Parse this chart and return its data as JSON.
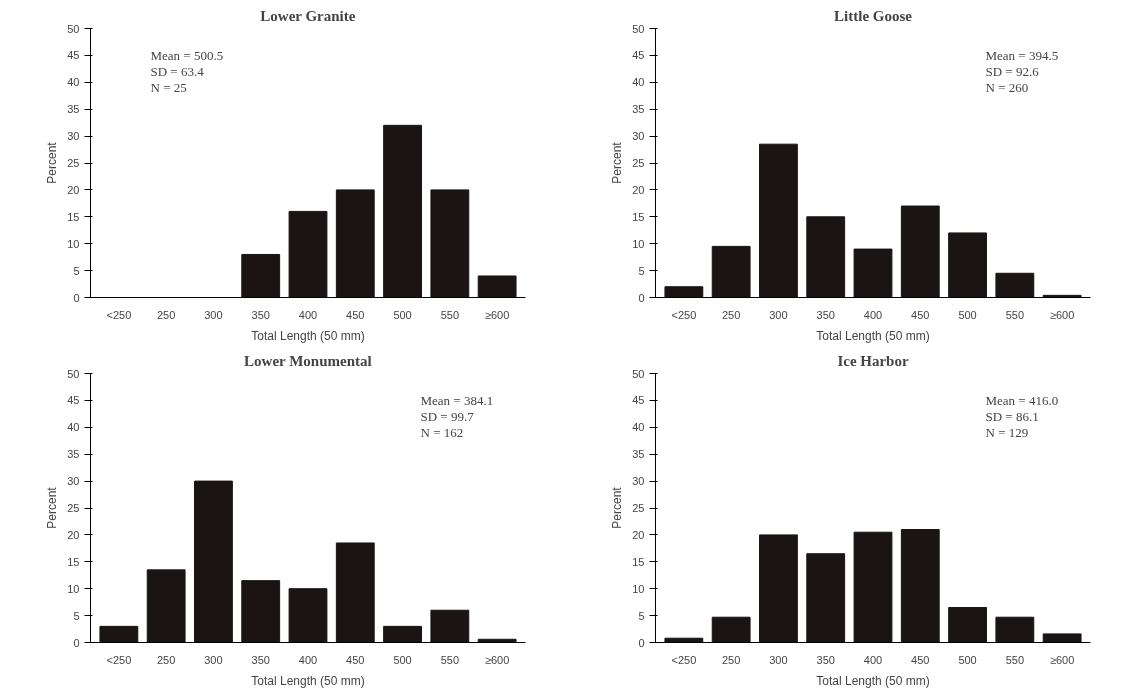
{
  "chart_data": [
    {
      "type": "bar",
      "title": "Lower Granite",
      "xlabel": "Total Length (50 mm)",
      "ylabel": "Percent",
      "categories": [
        "<250",
        "250",
        "300",
        "350",
        "400",
        "450",
        "500",
        "550",
        "≥600"
      ],
      "values": [
        0,
        0,
        0,
        8,
        16,
        20,
        32,
        20,
        4
      ],
      "color": "#1a1414",
      "ylim": [
        0,
        50
      ],
      "yticks": [
        0,
        5,
        10,
        15,
        20,
        25,
        30,
        35,
        40,
        45,
        50
      ],
      "grid": false,
      "annotations": [
        "Mean = 500.5",
        "SD = 63.4",
        "N = 25"
      ]
    },
    {
      "type": "bar",
      "title": "Little Goose",
      "xlabel": "Total Length (50 mm)",
      "ylabel": "Percent",
      "categories": [
        "<250",
        "250",
        "300",
        "350",
        "400",
        "450",
        "500",
        "550",
        "≥600"
      ],
      "values": [
        2,
        9.5,
        28.5,
        15,
        9,
        17,
        12,
        4.5,
        0.4
      ],
      "color": "#1a1414",
      "ylim": [
        0,
        50
      ],
      "yticks": [
        0,
        5,
        10,
        15,
        20,
        25,
        30,
        35,
        40,
        45,
        50
      ],
      "grid": false,
      "annotations": [
        "Mean = 394.5",
        "SD = 92.6",
        "N = 260"
      ]
    },
    {
      "type": "bar",
      "title": "Lower Monumental",
      "xlabel": "Total Length (50 mm)",
      "ylabel": "Percent",
      "categories": [
        "<250",
        "250",
        "300",
        "350",
        "400",
        "450",
        "500",
        "550",
        "≥600"
      ],
      "values": [
        3,
        13.5,
        30,
        11.5,
        10,
        18.5,
        3,
        6,
        0.6
      ],
      "color": "#1a1414",
      "ylim": [
        0,
        50
      ],
      "yticks": [
        0,
        5,
        10,
        15,
        20,
        25,
        30,
        35,
        40,
        45,
        50
      ],
      "grid": false,
      "annotations": [
        "Mean = 384.1",
        "SD = 99.7",
        "N = 162"
      ]
    },
    {
      "type": "bar",
      "title": "Ice Harbor",
      "xlabel": "Total Length (50 mm)",
      "ylabel": "Percent",
      "categories": [
        "<250",
        "250",
        "300",
        "350",
        "400",
        "450",
        "500",
        "550",
        "≥600"
      ],
      "values": [
        0.8,
        4.7,
        20,
        16.5,
        20.5,
        21,
        6.5,
        4.7,
        1.6
      ],
      "color": "#1a1414",
      "ylim": [
        0,
        50
      ],
      "yticks": [
        0,
        5,
        10,
        15,
        20,
        25,
        30,
        35,
        40,
        45,
        50
      ],
      "grid": false,
      "annotations": [
        "Mean = 416.0",
        "SD = 86.1",
        "N = 129"
      ]
    }
  ]
}
